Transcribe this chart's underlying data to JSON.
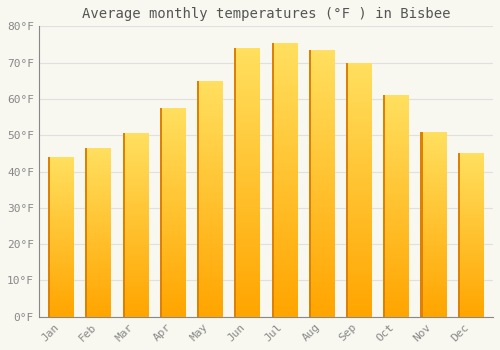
{
  "title": "Average monthly temperatures (°F ) in Bisbee",
  "months": [
    "Jan",
    "Feb",
    "Mar",
    "Apr",
    "May",
    "Jun",
    "Jul",
    "Aug",
    "Sep",
    "Oct",
    "Nov",
    "Dec"
  ],
  "values": [
    44,
    46.5,
    50.5,
    57.5,
    65,
    74,
    75.5,
    73.5,
    70,
    61,
    51,
    45
  ],
  "ylim": [
    0,
    80
  ],
  "yticks": [
    0,
    10,
    20,
    30,
    40,
    50,
    60,
    70,
    80
  ],
  "ytick_labels": [
    "0°F",
    "10°F",
    "20°F",
    "30°F",
    "40°F",
    "50°F",
    "60°F",
    "70°F",
    "80°F"
  ],
  "background_color": "#f8f8f0",
  "grid_color": "#e0e0e0",
  "bar_color_bottom": "#FFA500",
  "bar_color_top": "#FFD060",
  "title_fontsize": 10,
  "tick_fontsize": 8,
  "font_family": "monospace"
}
